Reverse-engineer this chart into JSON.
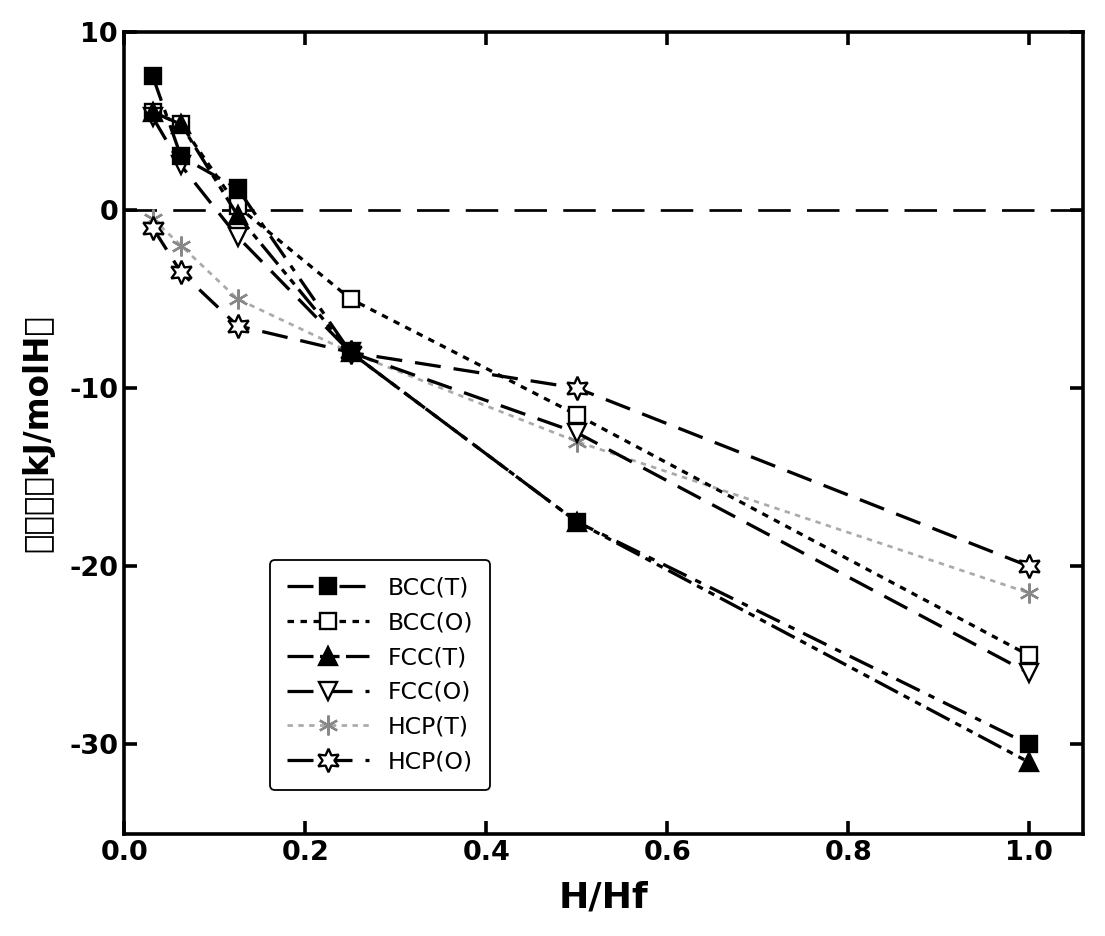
{
  "title": "",
  "xlabel": "H/Hf",
  "ylabel": "生成热（kJ/molH）",
  "xlim": [
    0,
    1.06
  ],
  "ylim": [
    -35,
    10
  ],
  "background_color": "#ffffff",
  "series": {
    "BCC_T": {
      "x": [
        0.03125,
        0.0625,
        0.125,
        0.25,
        0.5,
        1.0
      ],
      "y": [
        7.5,
        3.0,
        1.2,
        -8.0,
        -17.5,
        -30.0
      ],
      "label": "BCC(T)"
    },
    "BCC_O": {
      "x": [
        0.03125,
        0.0625,
        0.125,
        0.25,
        0.5,
        1.0
      ],
      "y": [
        5.5,
        4.8,
        0.2,
        -5.0,
        -11.5,
        -25.0
      ],
      "label": "BCC(O)"
    },
    "FCC_T": {
      "x": [
        0.03125,
        0.0625,
        0.125,
        0.25,
        0.5,
        1.0
      ],
      "y": [
        5.5,
        4.8,
        -0.3,
        -8.0,
        -17.5,
        -31.0
      ],
      "label": "FCC(T)"
    },
    "FCC_O": {
      "x": [
        0.03125,
        0.0625,
        0.125,
        0.25,
        0.5,
        1.0
      ],
      "y": [
        5.2,
        2.5,
        -1.5,
        -8.0,
        -12.5,
        -26.0
      ],
      "label": "FCC(O)"
    },
    "HCP_T": {
      "x": [
        0.03125,
        0.0625,
        0.125,
        0.25,
        0.5,
        1.0
      ],
      "y": [
        -0.5,
        -2.0,
        -5.0,
        -8.0,
        -13.0,
        -21.5
      ],
      "label": "HCP(T)"
    },
    "HCP_O": {
      "x": [
        0.03125,
        0.0625,
        0.125,
        0.25,
        0.5,
        1.0
      ],
      "y": [
        -1.0,
        -3.5,
        -6.5,
        -8.0,
        -10.0,
        -20.0
      ],
      "label": "HCP(O)"
    }
  },
  "xticks": [
    0.0,
    0.2,
    0.4,
    0.6,
    0.8,
    1.0
  ],
  "yticks": [
    10,
    0,
    -10,
    -20,
    -30
  ],
  "xtick_labels": [
    "0.0",
    "0.2",
    "0.4",
    "0.6",
    "0.8",
    "1.0"
  ],
  "ytick_labels": [
    "10",
    "0",
    "-10",
    "-20",
    "-30"
  ]
}
